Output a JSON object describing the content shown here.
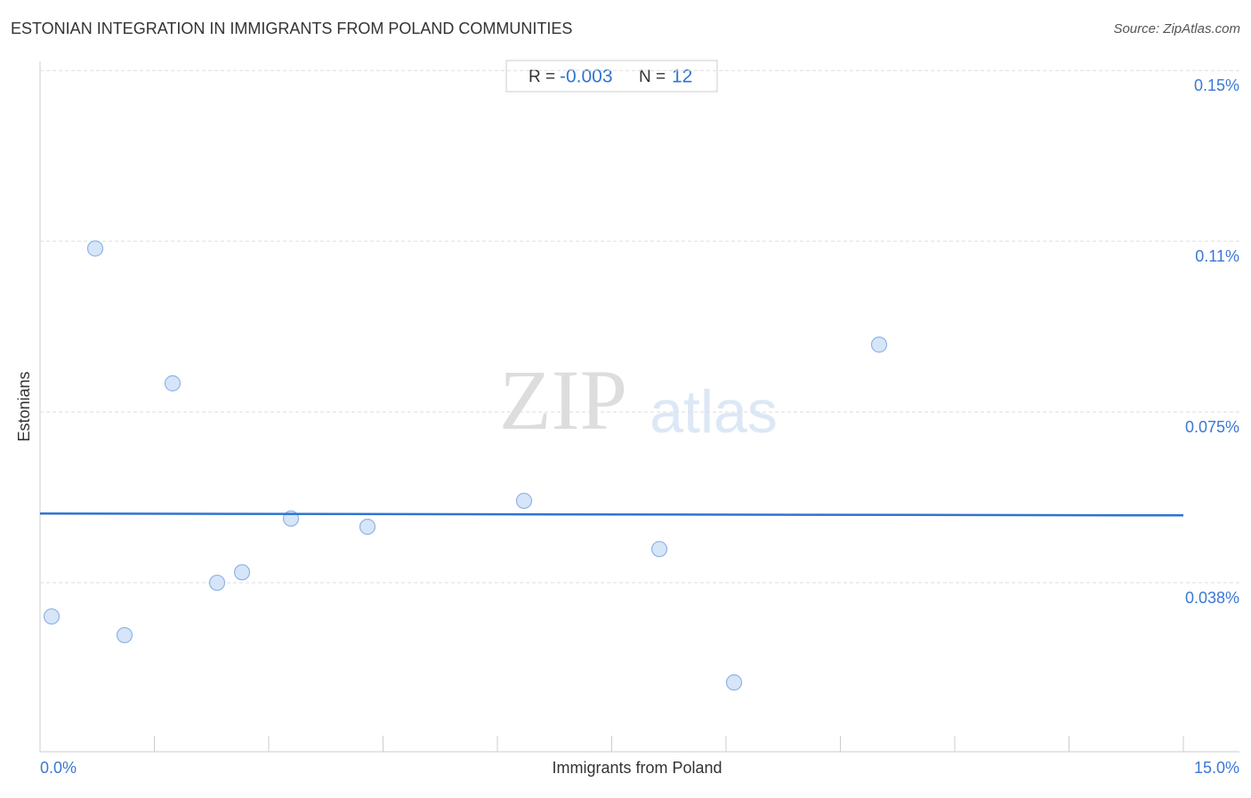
{
  "chart_data": {
    "type": "scatter",
    "title": "ESTONIAN INTEGRATION IN IMMIGRANTS FROM POLAND COMMUNITIES",
    "source": "Source: ZipAtlas.com",
    "x_label": "Immigrants from Poland",
    "y_label": "Estonians",
    "watermark": {
      "bold": "ZIP",
      "light": "atlas"
    },
    "stats": {
      "r_label": "R =",
      "r": -0.003,
      "n_label": "N =",
      "n": 12
    },
    "color": "#cfe0f7",
    "edge_color": "#8fb4e8",
    "x": [
      0.152,
      0.724,
      1.109,
      1.739,
      2.323,
      2.65,
      3.292,
      4.296,
      6.35,
      8.125,
      9.105,
      11.008
    ],
    "values": [
      0.0301,
      0.1109,
      0.026,
      0.0813,
      0.0375,
      0.0398,
      0.0516,
      0.0498,
      0.0555,
      0.0449,
      0.0156,
      0.0898
    ],
    "trendline": {
      "x": [
        0,
        15
      ],
      "y": [
        0.0527,
        0.0523
      ],
      "color": "#2f74d0"
    },
    "xlim": [
      0,
      15
    ],
    "ylim": [
      0,
      0.152
    ],
    "xticks": [
      {
        "value": 0,
        "label": "0.0%"
      },
      {
        "value": 15,
        "label": "15.0%"
      }
    ],
    "xminor_ticks": [
      1.5,
      3,
      4.5,
      6,
      7.5,
      9,
      10.5,
      12,
      13.5
    ],
    "yticks": [
      {
        "value": 0.0375,
        "label": "0.038%"
      },
      {
        "value": 0.075,
        "label": "0.075%"
      },
      {
        "value": 0.1125,
        "label": "0.11%"
      },
      {
        "value": 0.15,
        "label": "0.15%"
      }
    ],
    "grid": true
  }
}
